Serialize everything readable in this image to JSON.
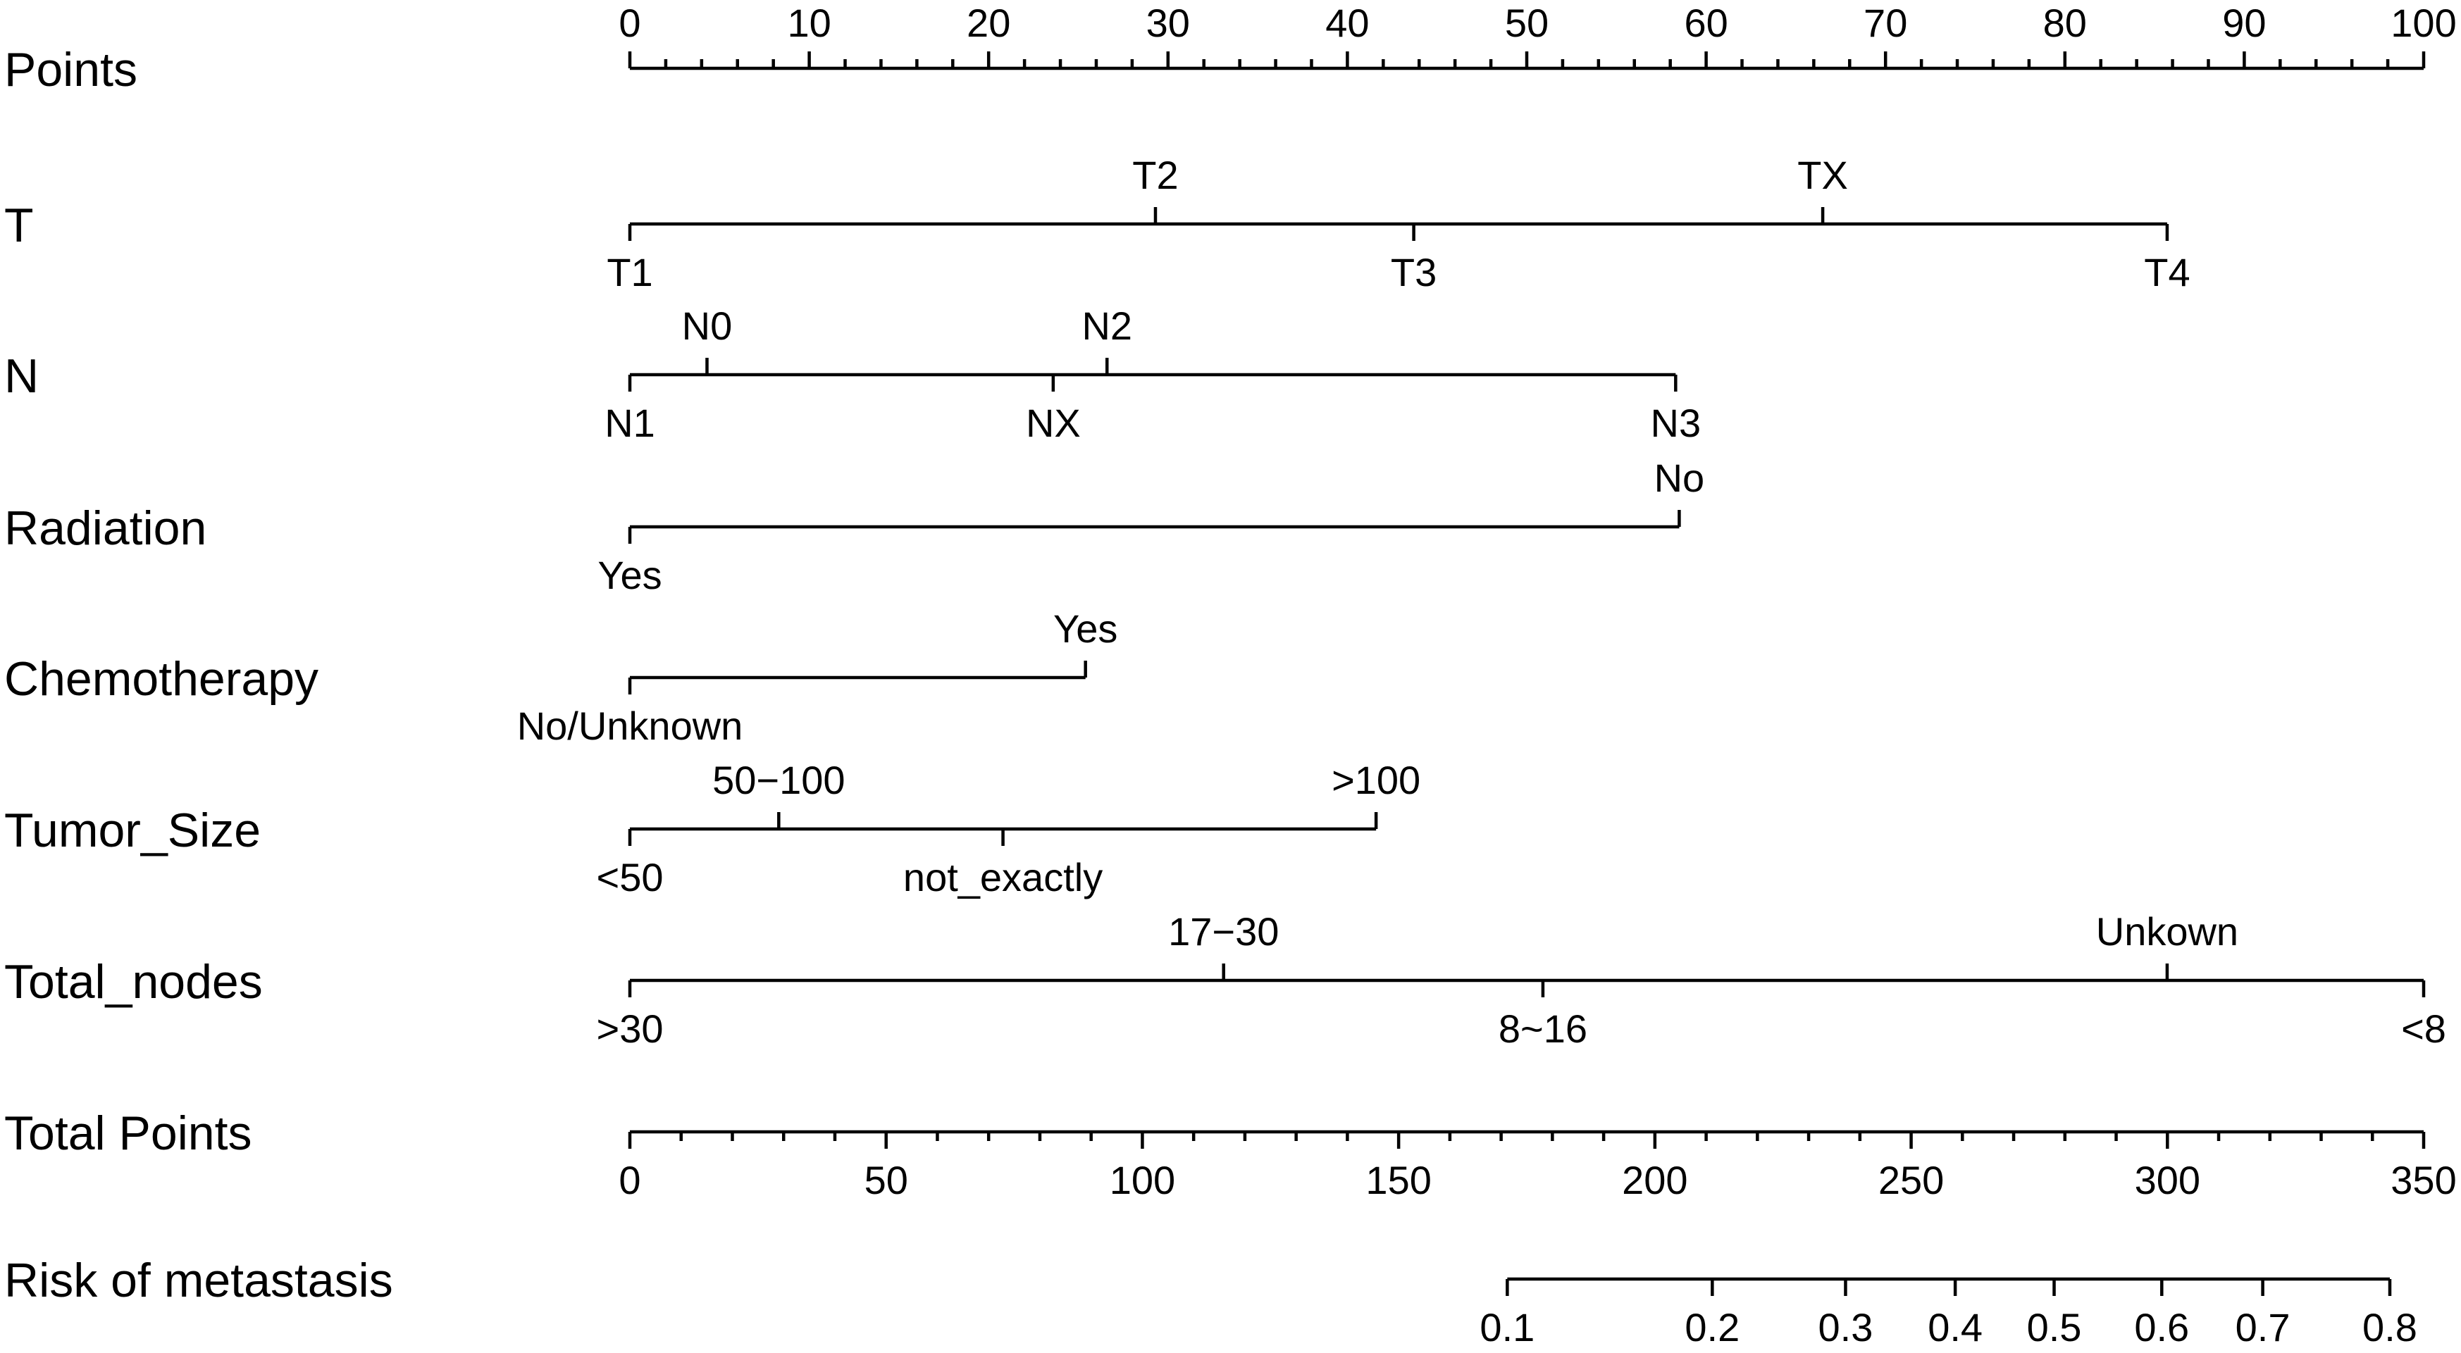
{
  "chart_data": {
    "type": "nomogram",
    "title": "",
    "rows": [
      {
        "label": "Points",
        "kind": "scale",
        "ticks": [
          0,
          10,
          20,
          30,
          40,
          50,
          60,
          70,
          80,
          90,
          100
        ],
        "minor_step": 2,
        "labels_position": "above"
      },
      {
        "label": "T",
        "kind": "predictor",
        "levels": [
          {
            "label": "T1",
            "points": 0,
            "side": "below"
          },
          {
            "label": "T2",
            "points": 29.3,
            "side": "above"
          },
          {
            "label": "T3",
            "points": 43.7,
            "side": "below"
          },
          {
            "label": "TX",
            "points": 66.5,
            "side": "above"
          },
          {
            "label": "T4",
            "points": 85.7,
            "side": "below"
          }
        ]
      },
      {
        "label": "N",
        "kind": "predictor",
        "levels": [
          {
            "label": "N1",
            "points": 0,
            "side": "below"
          },
          {
            "label": "N0",
            "points": 4.3,
            "side": "above"
          },
          {
            "label": "NX",
            "points": 23.6,
            "side": "below"
          },
          {
            "label": "N2",
            "points": 26.6,
            "side": "above"
          },
          {
            "label": "N3",
            "points": 58.3,
            "side": "below"
          }
        ]
      },
      {
        "label": "Radiation",
        "kind": "predictor",
        "levels": [
          {
            "label": "Yes",
            "points": 0,
            "side": "below"
          },
          {
            "label": "No",
            "points": 58.5,
            "side": "above"
          }
        ]
      },
      {
        "label": "Chemotherapy",
        "kind": "predictor",
        "levels": [
          {
            "label": "No/Unknown",
            "points": 0,
            "side": "below"
          },
          {
            "label": "Yes",
            "points": 25.4,
            "side": "above"
          }
        ]
      },
      {
        "label": "Tumor_Size",
        "kind": "predictor",
        "levels": [
          {
            "label": "<50",
            "points": 0,
            "side": "below"
          },
          {
            "label": "50−100",
            "points": 8.3,
            "side": "above"
          },
          {
            "label": "not_exactly",
            "points": 20.8,
            "side": "below"
          },
          {
            "label": ">100",
            "points": 41.6,
            "side": "above"
          }
        ]
      },
      {
        "label": "Total_nodes",
        "kind": "predictor",
        "levels": [
          {
            "label": ">30",
            "points": 0,
            "side": "below"
          },
          {
            "label": "17−30",
            "points": 33.1,
            "side": "above"
          },
          {
            "label": "8~16",
            "points": 50.9,
            "side": "below"
          },
          {
            "label": "Unkown",
            "points": 85.7,
            "side": "above"
          },
          {
            "label": "<8",
            "points": 100,
            "side": "below"
          }
        ]
      },
      {
        "label": "Total Points",
        "kind": "scale",
        "range": [
          0,
          350
        ],
        "ticks": [
          0,
          50,
          100,
          150,
          200,
          250,
          300,
          350
        ],
        "minor_step": 10,
        "labels_position": "below"
      },
      {
        "label": "Risk of metastasis",
        "kind": "risk",
        "ticks": [
          {
            "label": "0.1",
            "total_points": 171.2
          },
          {
            "label": "0.2",
            "total_points": 211.2
          },
          {
            "label": "0.3",
            "total_points": 237.2
          },
          {
            "label": "0.4",
            "total_points": 258.6
          },
          {
            "label": "0.5",
            "total_points": 277.9
          },
          {
            "label": "0.6",
            "total_points": 298.9
          },
          {
            "label": "0.7",
            "total_points": 318.6
          },
          {
            "label": "0.8",
            "total_points": 343.4
          }
        ]
      }
    ]
  }
}
